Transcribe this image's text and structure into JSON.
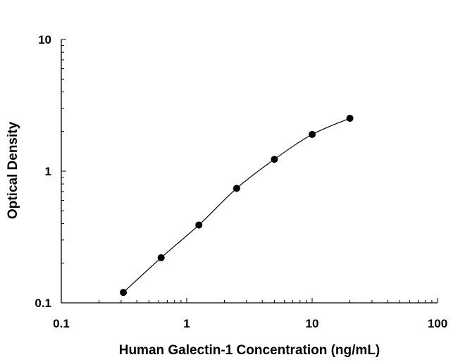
{
  "chart_data": {
    "type": "scatter",
    "title": "",
    "xlabel": "Human Galectin-1 Concentration (ng/mL)",
    "ylabel": "Optical Density",
    "xscale": "log",
    "yscale": "log",
    "xlim": [
      0.1,
      100
    ],
    "ylim": [
      0.1,
      10
    ],
    "x_ticks": [
      "0.1",
      "1",
      "10",
      "100"
    ],
    "y_ticks": [
      "0.1",
      "1",
      "10"
    ],
    "grid": false,
    "legend": "none",
    "fit": "smooth curve through points",
    "series": [
      {
        "x": [
          0.3125,
          0.625,
          1.25,
          2.5,
          5,
          10,
          20
        ],
        "y": [
          0.12,
          0.22,
          0.39,
          0.74,
          1.23,
          1.9,
          2.52
        ]
      }
    ]
  }
}
